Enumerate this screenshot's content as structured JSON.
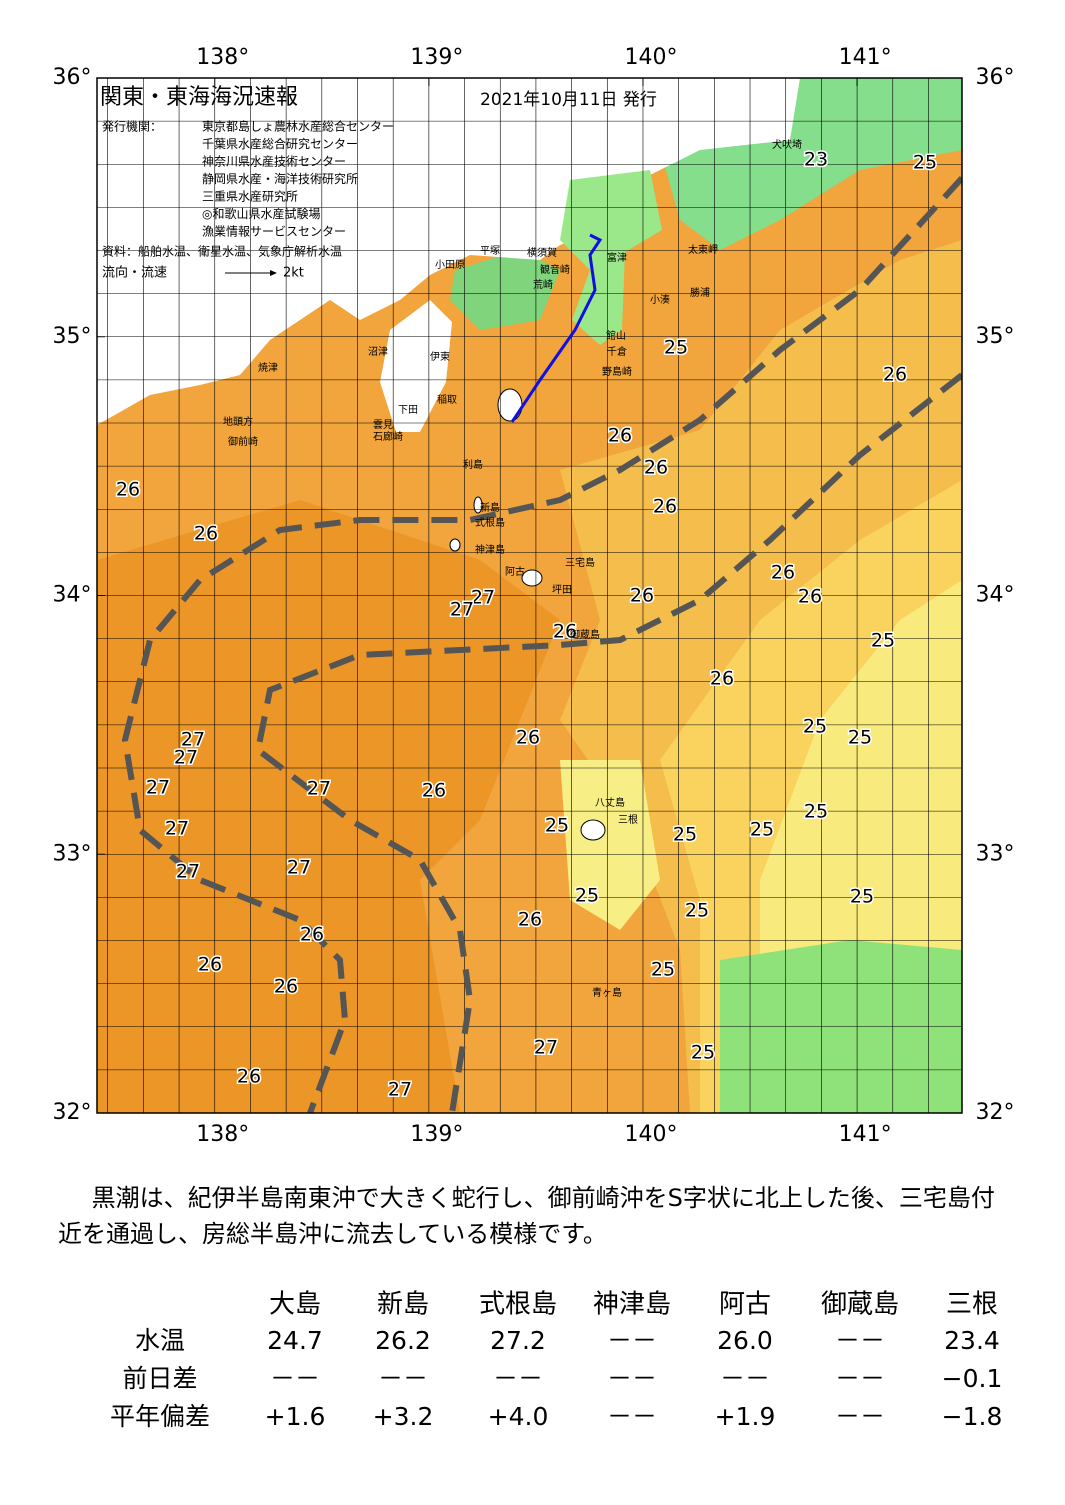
{
  "map": {
    "title": "関東・東海海況速報",
    "date": "2021年10月11日 発行",
    "issuer_label": "発行機関：",
    "issuers": [
      "東京都島しょ農林水産総合センター",
      "千葉県水産総合研究センター",
      "神奈川県水産技術センター",
      "静岡県水産・海洋技術研究所",
      "三重県水産研究所",
      "◎和歌山県水産試験場",
      "漁業情報サービスセンター"
    ],
    "source": "資料：船舶水温、衛星水温、気象庁解析水温",
    "flow_label": "流向・流速",
    "flow_scale": "2kt",
    "xlim": [
      137.45,
      141.49
    ],
    "ylim": [
      32,
      36
    ],
    "xticks": [
      {
        "value": 138,
        "label": "138°"
      },
      {
        "value": 139,
        "label": "139°"
      },
      {
        "value": 140,
        "label": "140°"
      },
      {
        "value": 141,
        "label": "141°"
      }
    ],
    "yticks": [
      {
        "value": 32,
        "label": "32°"
      },
      {
        "value": 33,
        "label": "33°"
      },
      {
        "value": 34,
        "label": "34°"
      },
      {
        "value": 35,
        "label": "35°"
      },
      {
        "value": 36,
        "label": "36°"
      }
    ],
    "isotherm_labels": [
      23,
      25,
      25,
      26,
      26,
      26,
      26,
      26,
      26,
      26,
      26,
      26,
      27,
      27,
      26,
      25,
      26,
      25,
      25,
      27,
      27,
      26,
      27,
      27,
      26,
      25,
      25,
      27,
      25,
      25,
      27,
      27,
      25,
      25,
      25,
      26,
      26,
      26,
      25,
      26,
      27,
      25,
      26,
      27
    ],
    "place_names": [
      "犬吠埼",
      "太東岬",
      "勝浦",
      "小湊",
      "館山",
      "千倉",
      "野島崎",
      "富津",
      "観音崎",
      "荒崎",
      "横須賀",
      "平塚",
      "小田原",
      "沼津",
      "伊東",
      "稲取",
      "下田",
      "焼津",
      "地頭方",
      "御前崎",
      "雲見",
      "石廊崎",
      "利島",
      "新島",
      "式根島",
      "神津島",
      "三宅島",
      "阿古",
      "坪田",
      "御蔵島",
      "八丈島",
      "三根",
      "青ヶ島"
    ]
  },
  "description": "黒潮は、紀伊半島南東沖で大きく蛇行し、御前崎沖をS字状に北上した後、三宅島付近を通過し、房総半島沖に流去している模様です。",
  "table": {
    "columns": [
      "大島",
      "新島",
      "式根島",
      "神津島",
      "阿古",
      "御蔵島",
      "三根"
    ],
    "rows": [
      [
        "水温",
        "24.7",
        "26.2",
        "27.2",
        "－－",
        "26.0",
        "－－",
        "23.4"
      ],
      [
        "前日差",
        "－－",
        "－－",
        "－－",
        "－－",
        "－－",
        "－－",
        "−0.1"
      ],
      [
        "平年偏差",
        "+1.6",
        "+3.2",
        "+4.0",
        "－－",
        "+1.9",
        "－－",
        "−1.8"
      ]
    ]
  }
}
